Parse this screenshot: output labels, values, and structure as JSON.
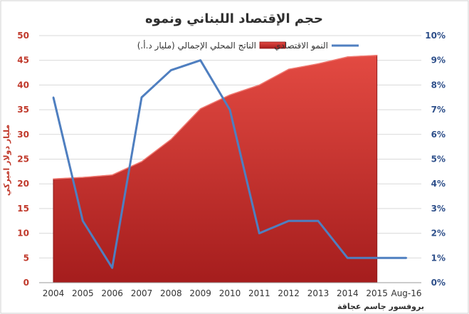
{
  "chart_data": {
    "type": "area",
    "title": "حجم الإقتصاد اللبناني ونموه",
    "ylabel_left": "مليار دولار اميركي",
    "ylabel_right": "",
    "credit": "بروفسور جاسم عجاقة",
    "categories": [
      "2004",
      "2005",
      "2006",
      "2007",
      "2008",
      "2009",
      "2010",
      "2011",
      "2012",
      "2013",
      "2014",
      "2015",
      "Aug-16"
    ],
    "left_axis": {
      "min": 0,
      "max": 50,
      "step": 5,
      "ticks": [
        "0",
        "5",
        "10",
        "15",
        "20",
        "25",
        "30",
        "35",
        "40",
        "45",
        "50"
      ]
    },
    "right_axis": {
      "min": 0,
      "max": 10,
      "step": 1,
      "ticks": [
        "0%",
        "1%",
        "2%",
        "3%",
        "4%",
        "5%",
        "6%",
        "7%",
        "8%",
        "9%",
        "10%"
      ]
    },
    "grid": true,
    "legend_position": "top",
    "series": [
      {
        "name": "الناتج المحلي الإجمالي (مليار د.أ.)",
        "kind": "area",
        "axis": "left",
        "color": "#c0392b",
        "x": [
          "2004",
          "2005",
          "2006",
          "2007",
          "2008",
          "2009",
          "2010",
          "2011",
          "2012",
          "2013",
          "2014",
          "2015"
        ],
        "values": [
          21.0,
          21.3,
          21.8,
          24.5,
          29.0,
          35.2,
          38.0,
          40.0,
          43.2,
          44.3,
          45.7,
          46.0
        ]
      },
      {
        "name": "النمو الاقتصادي",
        "kind": "line",
        "axis": "right",
        "color": "#4f7fc0",
        "x": [
          "2004",
          "2005",
          "2006",
          "2007",
          "2008",
          "2009",
          "2010",
          "2011",
          "2012",
          "2013",
          "2014",
          "2015",
          "Aug-16"
        ],
        "values": [
          7.5,
          2.5,
          0.6,
          7.5,
          8.6,
          9.0,
          7.0,
          2.0,
          2.5,
          2.5,
          1.0,
          1.0,
          1.0
        ]
      }
    ]
  }
}
